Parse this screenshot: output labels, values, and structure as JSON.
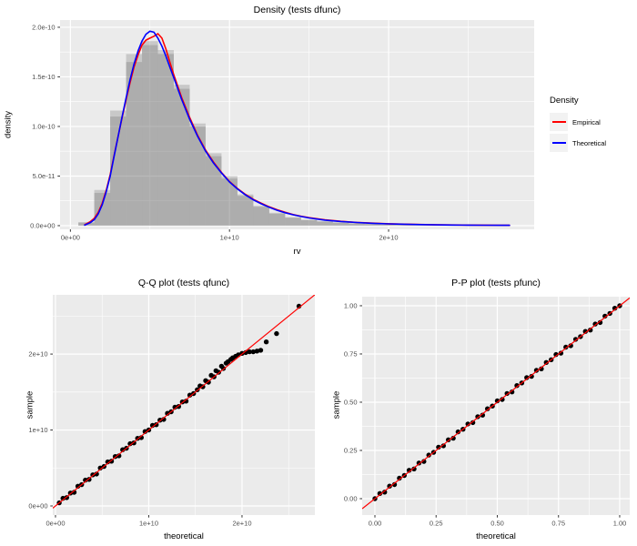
{
  "figure": {
    "background": "#FFFFFF",
    "panel_bg": "#EBEBEB",
    "grid_major": "#FFFFFF",
    "grid_minor": "#FFFFFF",
    "tick_color": "#333333",
    "tick_label_color": "#4D4D4D",
    "title_color": "#000000",
    "hist_fill": "#4D4D4D",
    "hist_alpha": 0.22,
    "point_color": "#000000"
  },
  "chart_data": [
    {
      "id": "density",
      "type": "line",
      "subtype": "histogram-with-density-curves",
      "title": "Density (tests dfunc)",
      "xlabel": "rv",
      "ylabel": "density",
      "x_unit": "1e9",
      "y_unit": "1e-11",
      "xlim": [
        -0.65,
        29.15
      ],
      "ylim": [
        -0.37,
        20.73
      ],
      "x_ticks": [
        {
          "v": 0,
          "label": "0e+00"
        },
        {
          "v": 10,
          "label": "1e+10"
        },
        {
          "v": 20,
          "label": "2e+10"
        }
      ],
      "y_ticks": [
        {
          "v": 0,
          "label": "0.0e+00"
        },
        {
          "v": 5,
          "label": "5.0e-11"
        },
        {
          "v": 10,
          "label": "1.0e-10"
        },
        {
          "v": 15,
          "label": "1.5e-10"
        },
        {
          "v": 20,
          "label": "2.0e-10"
        }
      ],
      "x_minor": [
        5,
        15,
        25
      ],
      "y_minor": [
        2.5,
        7.5,
        12.5,
        17.5
      ],
      "histogram": {
        "bin_start": 0.5,
        "bin_width": 1,
        "layer_a": [
          0.3,
          3.3,
          11.0,
          17.3,
          18.6,
          17.3,
          13.8,
          10.0,
          7.0,
          4.75,
          3.0,
          1.9,
          1.2,
          0.8,
          0.55,
          0.4,
          0.3,
          0.22,
          0.16,
          0.12,
          0.1,
          0.08,
          0.06,
          0.05,
          0.04,
          0.03
        ],
        "layer_b": [
          0.35,
          3.6,
          11.6,
          16.5,
          18.2,
          17.7,
          14.2,
          10.3,
          7.3,
          5.0,
          3.15,
          2.0,
          1.3,
          0.85,
          0.6,
          0.45,
          0.33,
          0.24,
          0.18,
          0.13,
          0.11,
          0.09,
          0.07,
          0.05,
          0.04,
          0.03
        ]
      },
      "series": [
        {
          "name": "Empirical",
          "color": "#FF0000",
          "x": [
            0.9,
            1.25,
            1.5,
            1.75,
            2,
            2.25,
            2.5,
            2.75,
            3,
            3.25,
            3.5,
            3.75,
            4,
            4.25,
            4.5,
            4.75,
            5,
            5.25,
            5.5,
            5.75,
            6,
            6.25,
            6.5,
            7,
            7.5,
            8,
            8.5,
            9,
            9.5,
            10,
            10.5,
            11,
            11.5,
            12,
            12.5,
            13,
            13.5,
            14,
            14.5,
            15,
            16,
            17,
            18,
            19,
            20,
            21,
            22,
            23,
            24,
            25,
            26,
            27,
            27.6
          ],
          "y": [
            0.1,
            0.4,
            0.75,
            1.35,
            2.25,
            3.55,
            5.15,
            7.1,
            9.0,
            10.9,
            12.7,
            14.4,
            16.0,
            17.2,
            18.2,
            18.7,
            18.9,
            19.1,
            19.35,
            18.9,
            17.8,
            16.5,
            15.2,
            12.9,
            10.9,
            9.1,
            7.6,
            6.4,
            5.35,
            4.45,
            3.75,
            3.15,
            2.65,
            2.25,
            1.9,
            1.6,
            1.35,
            1.12,
            0.95,
            0.8,
            0.58,
            0.44,
            0.33,
            0.25,
            0.19,
            0.15,
            0.12,
            0.09,
            0.07,
            0.06,
            0.05,
            0.04,
            0.03
          ]
        },
        {
          "name": "Theoretical",
          "color": "#0000FF",
          "x": [
            0.9,
            1.25,
            1.5,
            1.75,
            2,
            2.25,
            2.5,
            2.75,
            3,
            3.25,
            3.5,
            3.75,
            4,
            4.25,
            4.5,
            4.75,
            5,
            5.25,
            5.5,
            5.75,
            6,
            6.25,
            6.5,
            7,
            7.5,
            8,
            8.5,
            9,
            9.5,
            10,
            10.5,
            11,
            11.5,
            12,
            12.5,
            13,
            13.5,
            14,
            14.5,
            15,
            16,
            17,
            18,
            19,
            20,
            21,
            22,
            23,
            24,
            25,
            26,
            27,
            27.6
          ],
          "y": [
            0.05,
            0.3,
            0.6,
            1.2,
            2.1,
            3.4,
            5.0,
            7.0,
            9.0,
            11.0,
            12.9,
            14.7,
            16.3,
            17.6,
            18.6,
            19.3,
            19.6,
            19.5,
            18.9,
            18.1,
            17.1,
            16.0,
            14.9,
            12.7,
            10.7,
            9.0,
            7.5,
            6.3,
            5.3,
            4.4,
            3.7,
            3.1,
            2.6,
            2.2,
            1.85,
            1.55,
            1.3,
            1.1,
            0.92,
            0.78,
            0.56,
            0.42,
            0.32,
            0.24,
            0.18,
            0.14,
            0.11,
            0.08,
            0.06,
            0.05,
            0.04,
            0.03,
            0.03
          ]
        }
      ],
      "legend": {
        "title": "Density",
        "entries": [
          {
            "label": "Empirical",
            "color": "#FF0000"
          },
          {
            "label": "Theoretical",
            "color": "#0000FF"
          }
        ]
      }
    },
    {
      "id": "qq",
      "type": "scatter",
      "title": "Q-Q plot (tests qfunc)",
      "xlabel": "theoretical",
      "ylabel": "sample",
      "x_unit": "1e10",
      "y_unit": "1e10",
      "xlim": [
        -0.029,
        2.781
      ],
      "ylim": [
        -0.12,
        2.78
      ],
      "x_ticks": [
        {
          "v": 0,
          "label": "0e+00"
        },
        {
          "v": 1,
          "label": "1e+10"
        },
        {
          "v": 2,
          "label": "2e+10"
        }
      ],
      "y_ticks": [
        {
          "v": 0,
          "label": "0e+00"
        },
        {
          "v": 1,
          "label": "1e+10"
        },
        {
          "v": 2,
          "label": "2e+10"
        }
      ],
      "x_minor": [
        0.5,
        1.5,
        2.5
      ],
      "y_minor": [
        0.5,
        1.5,
        2.5
      ],
      "refline": {
        "slope": 1,
        "intercept": 0,
        "color": "#FF0000"
      },
      "points": [
        [
          0.04,
          0.04
        ],
        [
          0.08,
          0.1
        ],
        [
          0.12,
          0.11
        ],
        [
          0.16,
          0.17
        ],
        [
          0.2,
          0.18
        ],
        [
          0.24,
          0.26
        ],
        [
          0.28,
          0.28
        ],
        [
          0.32,
          0.34
        ],
        [
          0.36,
          0.35
        ],
        [
          0.4,
          0.41
        ],
        [
          0.44,
          0.42
        ],
        [
          0.48,
          0.5
        ],
        [
          0.52,
          0.52
        ],
        [
          0.56,
          0.58
        ],
        [
          0.6,
          0.59
        ],
        [
          0.64,
          0.65
        ],
        [
          0.68,
          0.66
        ],
        [
          0.72,
          0.74
        ],
        [
          0.76,
          0.76
        ],
        [
          0.8,
          0.82
        ],
        [
          0.84,
          0.83
        ],
        [
          0.88,
          0.89
        ],
        [
          0.92,
          0.9
        ],
        [
          0.96,
          0.98
        ],
        [
          1.0,
          1.0
        ],
        [
          1.04,
          1.06
        ],
        [
          1.08,
          1.07
        ],
        [
          1.12,
          1.13
        ],
        [
          1.16,
          1.14
        ],
        [
          1.2,
          1.22
        ],
        [
          1.24,
          1.24
        ],
        [
          1.28,
          1.3
        ],
        [
          1.32,
          1.31
        ],
        [
          1.36,
          1.37
        ],
        [
          1.4,
          1.38
        ],
        [
          1.44,
          1.46
        ],
        [
          1.48,
          1.48
        ],
        [
          1.52,
          1.53
        ],
        [
          1.55,
          1.58
        ],
        [
          1.58,
          1.57
        ],
        [
          1.61,
          1.65
        ],
        [
          1.64,
          1.63
        ],
        [
          1.67,
          1.72
        ],
        [
          1.7,
          1.7
        ],
        [
          1.72,
          1.78
        ],
        [
          1.75,
          1.76
        ],
        [
          1.78,
          1.84
        ],
        [
          1.8,
          1.81
        ],
        [
          1.83,
          1.88
        ],
        [
          1.85,
          1.9
        ],
        [
          1.88,
          1.93
        ],
        [
          1.9,
          1.95
        ],
        [
          1.93,
          1.97
        ],
        [
          1.96,
          1.99
        ],
        [
          2.0,
          2.01
        ],
        [
          2.04,
          2.02
        ],
        [
          2.08,
          2.03
        ],
        [
          2.12,
          2.03
        ],
        [
          2.16,
          2.04
        ],
        [
          2.2,
          2.05
        ],
        [
          2.26,
          2.16
        ],
        [
          2.37,
          2.27
        ],
        [
          2.61,
          2.63
        ]
      ]
    },
    {
      "id": "pp",
      "type": "scatter",
      "title": "P-P plot (tests pfunc)",
      "xlabel": "theoretical",
      "ylabel": "sample",
      "xlim": [
        -0.052,
        1.041
      ],
      "ylim": [
        -0.085,
        1.047
      ],
      "x_ticks": [
        {
          "v": 0,
          "label": "0.00"
        },
        {
          "v": 0.25,
          "label": "0.25"
        },
        {
          "v": 0.5,
          "label": "0.50"
        },
        {
          "v": 0.75,
          "label": "0.75"
        },
        {
          "v": 1,
          "label": "1.00"
        }
      ],
      "y_ticks": [
        {
          "v": 0,
          "label": "0.00"
        },
        {
          "v": 0.25,
          "label": "0.25"
        },
        {
          "v": 0.5,
          "label": "0.50"
        },
        {
          "v": 0.75,
          "label": "0.75"
        },
        {
          "v": 1,
          "label": "1.00"
        }
      ],
      "x_minor": [
        0.125,
        0.375,
        0.625,
        0.875
      ],
      "y_minor": [
        0.125,
        0.375,
        0.625,
        0.875
      ],
      "refline": {
        "slope": 1,
        "intercept": 0,
        "color": "#FF0000"
      },
      "points": [
        [
          0.0,
          0.0
        ],
        [
          0.02,
          0.027
        ],
        [
          0.04,
          0.034
        ],
        [
          0.06,
          0.065
        ],
        [
          0.08,
          0.073
        ],
        [
          0.1,
          0.106
        ],
        [
          0.12,
          0.12
        ],
        [
          0.14,
          0.147
        ],
        [
          0.16,
          0.154
        ],
        [
          0.18,
          0.185
        ],
        [
          0.2,
          0.193
        ],
        [
          0.22,
          0.226
        ],
        [
          0.24,
          0.24
        ],
        [
          0.26,
          0.267
        ],
        [
          0.28,
          0.274
        ],
        [
          0.3,
          0.305
        ],
        [
          0.32,
          0.313
        ],
        [
          0.34,
          0.346
        ],
        [
          0.36,
          0.36
        ],
        [
          0.38,
          0.387
        ],
        [
          0.4,
          0.394
        ],
        [
          0.42,
          0.425
        ],
        [
          0.44,
          0.433
        ],
        [
          0.46,
          0.466
        ],
        [
          0.48,
          0.48
        ],
        [
          0.5,
          0.507
        ],
        [
          0.52,
          0.514
        ],
        [
          0.54,
          0.545
        ],
        [
          0.56,
          0.553
        ],
        [
          0.58,
          0.586
        ],
        [
          0.6,
          0.6
        ],
        [
          0.62,
          0.627
        ],
        [
          0.64,
          0.634
        ],
        [
          0.66,
          0.665
        ],
        [
          0.68,
          0.673
        ],
        [
          0.7,
          0.706
        ],
        [
          0.72,
          0.72
        ],
        [
          0.74,
          0.747
        ],
        [
          0.76,
          0.754
        ],
        [
          0.78,
          0.785
        ],
        [
          0.8,
          0.793
        ],
        [
          0.82,
          0.826
        ],
        [
          0.84,
          0.84
        ],
        [
          0.86,
          0.867
        ],
        [
          0.88,
          0.874
        ],
        [
          0.9,
          0.905
        ],
        [
          0.92,
          0.913
        ],
        [
          0.94,
          0.946
        ],
        [
          0.96,
          0.96
        ],
        [
          0.98,
          0.987
        ],
        [
          1.0,
          1.0
        ]
      ]
    }
  ]
}
